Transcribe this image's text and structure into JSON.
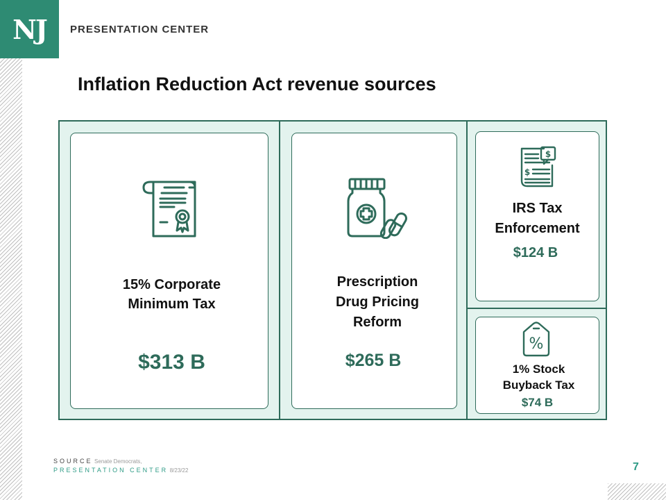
{
  "logo": {
    "text": "NJ"
  },
  "header": {
    "title": "PRESENTATION CENTER"
  },
  "title": "Inflation Reduction Act revenue sources",
  "sources": [
    {
      "label": "15%  Corporate\nMinimum Tax",
      "amount": "$313 B",
      "icon": "certificate-icon"
    },
    {
      "label": "Prescription\nDrug Pricing\nReform",
      "amount": "$265 B",
      "icon": "medicine-bottle-icon"
    },
    {
      "label": "IRS Tax\nEnforcement",
      "amount": "$124 B",
      "icon": "tax-document-icon"
    },
    {
      "label": "1% Stock\nBuyback Tax",
      "amount": "$74 B",
      "icon": "percent-tag-icon"
    }
  ],
  "footer": {
    "source_label": "SOURCE",
    "source_value": "Senate Democrats,",
    "center_label": "PRESENTATION CENTER",
    "date": "8/23/22"
  },
  "page_number": "7",
  "colors": {
    "brand": "#2e8b73",
    "accent": "#2e6b5a",
    "panel": "#e3f3ee"
  }
}
